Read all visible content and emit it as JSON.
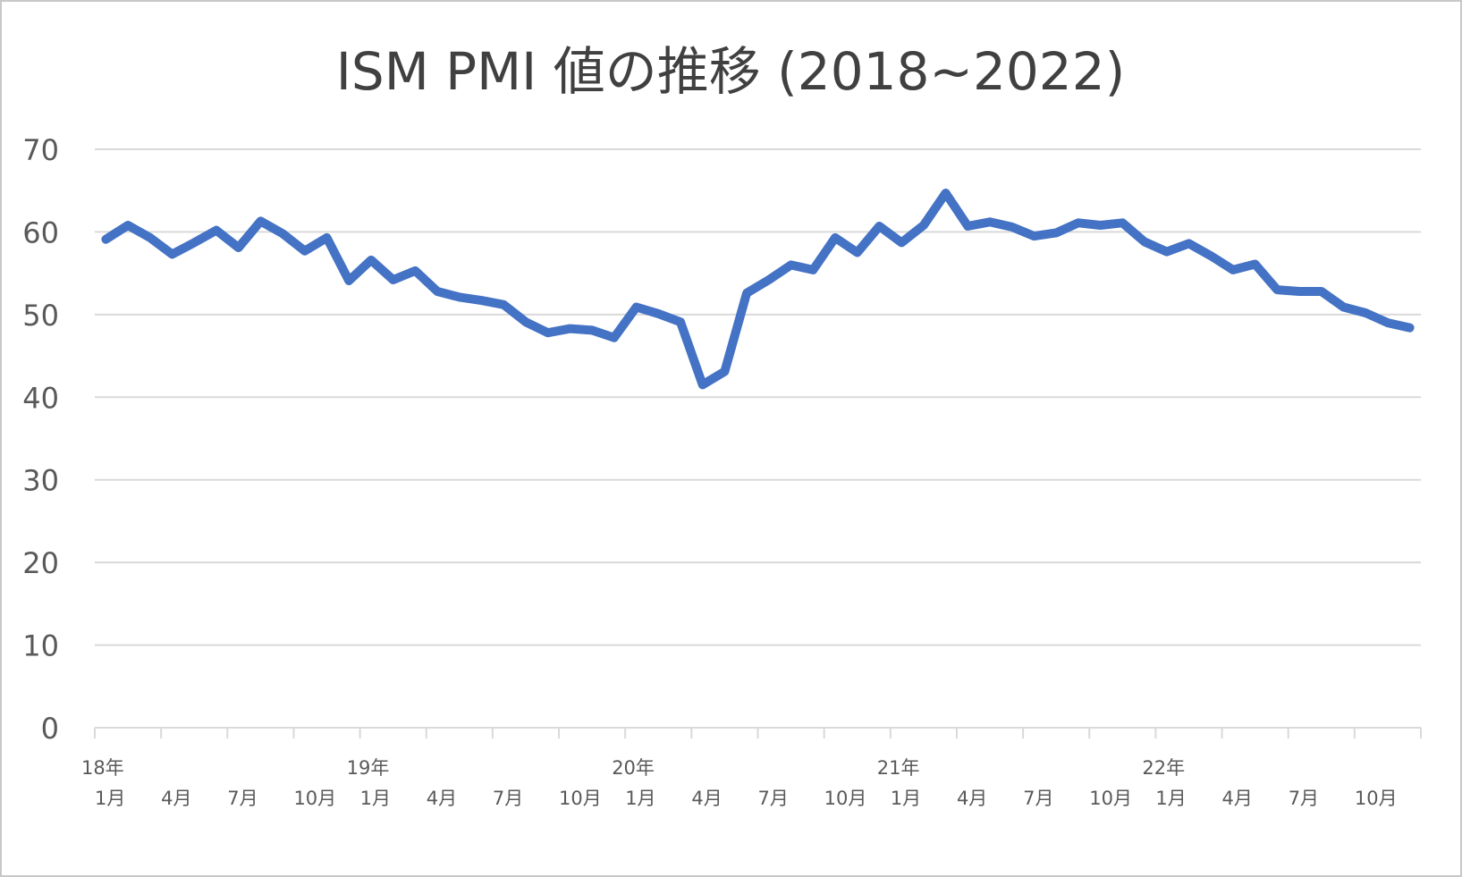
{
  "chart_data": {
    "type": "line",
    "title": "ISM PMI 値の推移 (2018~2022)",
    "xlabel": "",
    "ylabel": "",
    "ylim": [
      0,
      70
    ],
    "yticks": [
      "0",
      "10",
      "20",
      "30",
      "40",
      "50",
      "60",
      "70"
    ],
    "grid": true,
    "legend": "none",
    "line_color": "#4472c4",
    "grid_color": "#d9d9d9",
    "x_month_labels": [
      "1月",
      "4月",
      "7月",
      "10月",
      "1月",
      "4月",
      "7月",
      "10月",
      "1月",
      "4月",
      "7月",
      "10月",
      "1月",
      "4月",
      "7月",
      "10月",
      "1月",
      "4月",
      "7月",
      "10月"
    ],
    "x_year_labels": [
      "18年",
      "19年",
      "20年",
      "21年",
      "22年"
    ],
    "x": [
      "2018-01",
      "2018-02",
      "2018-03",
      "2018-04",
      "2018-05",
      "2018-06",
      "2018-07",
      "2018-08",
      "2018-09",
      "2018-10",
      "2018-11",
      "2018-12",
      "2019-01",
      "2019-02",
      "2019-03",
      "2019-04",
      "2019-05",
      "2019-06",
      "2019-07",
      "2019-08",
      "2019-09",
      "2019-10",
      "2019-11",
      "2019-12",
      "2020-01",
      "2020-02",
      "2020-03",
      "2020-04",
      "2020-05",
      "2020-06",
      "2020-07",
      "2020-08",
      "2020-09",
      "2020-10",
      "2020-11",
      "2020-12",
      "2021-01",
      "2021-02",
      "2021-03",
      "2021-04",
      "2021-05",
      "2021-06",
      "2021-07",
      "2021-08",
      "2021-09",
      "2021-10",
      "2021-11",
      "2021-12",
      "2022-01",
      "2022-02",
      "2022-03",
      "2022-04",
      "2022-05",
      "2022-06",
      "2022-07",
      "2022-08",
      "2022-09",
      "2022-10",
      "2022-11",
      "2022-12"
    ],
    "series": [
      {
        "values": [
          59.1,
          60.8,
          59.3,
          57.3,
          58.7,
          60.2,
          58.1,
          61.3,
          59.8,
          57.7,
          59.3,
          54.1,
          56.6,
          54.2,
          55.3,
          52.8,
          52.1,
          51.7,
          51.2,
          49.1,
          47.8,
          48.3,
          48.1,
          47.2,
          50.9,
          50.1,
          49.1,
          41.5,
          43.1,
          52.6,
          54.2,
          56.0,
          55.4,
          59.3,
          57.5,
          60.7,
          58.7,
          60.8,
          64.7,
          60.7,
          61.2,
          60.6,
          59.5,
          59.9,
          61.1,
          60.8,
          61.1,
          58.8,
          57.6,
          58.6,
          57.1,
          55.4,
          56.1,
          53.0,
          52.8,
          52.8,
          50.9,
          50.2,
          49.0,
          48.4
        ]
      }
    ]
  }
}
